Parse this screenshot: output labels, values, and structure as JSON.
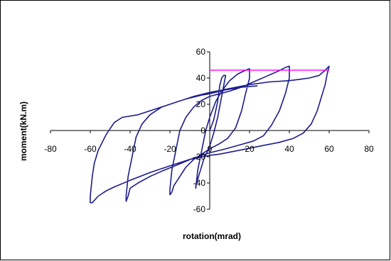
{
  "chart_data": {
    "type": "line",
    "xlabel": "rotation(mrad)",
    "ylabel": "moment(kN.m)",
    "xlim": [
      -80,
      80
    ],
    "ylim": [
      -60,
      60
    ],
    "x_ticks": [
      -80,
      -60,
      -40,
      -20,
      0,
      20,
      40,
      60,
      80
    ],
    "y_ticks": [
      60,
      40,
      20,
      0,
      -20,
      -40,
      -60
    ],
    "x_tick_labels": [
      "-80",
      "-60",
      "-40",
      "-20",
      "0",
      "20",
      "40",
      "60",
      "80"
    ],
    "y_tick_labels": [
      "60",
      "40",
      "20",
      "0",
      "-20",
      "-40",
      "-60"
    ],
    "grid": false,
    "legend": "none",
    "series": [
      {
        "color": "#1c1c8c",
        "points": [
          [
            0,
            0
          ],
          [
            2,
            8
          ],
          [
            4,
            22
          ],
          [
            5,
            34
          ],
          [
            6,
            40
          ],
          [
            7,
            42
          ],
          [
            8,
            42
          ],
          [
            6,
            26
          ],
          [
            4,
            10
          ],
          [
            2,
            -2
          ],
          [
            0,
            -12
          ],
          [
            -3,
            -22
          ],
          [
            -5,
            -32
          ],
          [
            -7,
            -42
          ],
          [
            -7,
            -44
          ],
          [
            -6,
            -30
          ],
          [
            -4,
            -15
          ],
          [
            -2,
            0
          ],
          [
            0,
            10
          ],
          [
            3,
            22
          ],
          [
            6,
            30
          ],
          [
            10,
            38
          ],
          [
            14,
            43
          ],
          [
            18,
            46
          ],
          [
            20,
            47
          ],
          [
            20,
            40
          ],
          [
            18,
            28
          ],
          [
            16,
            15
          ],
          [
            13,
            2
          ],
          [
            9,
            -6
          ],
          [
            5,
            -10
          ],
          [
            0,
            -14
          ],
          [
            -4,
            -18
          ],
          [
            -8,
            -22
          ],
          [
            -12,
            -28
          ],
          [
            -15,
            -35
          ],
          [
            -18,
            -42
          ],
          [
            -19,
            -47
          ],
          [
            -20,
            -49
          ],
          [
            -20,
            -45
          ],
          [
            -19,
            -30
          ],
          [
            -17,
            -15
          ],
          [
            -15,
            0
          ],
          [
            -12,
            10
          ],
          [
            -8,
            18
          ],
          [
            -4,
            23
          ],
          [
            0,
            26
          ],
          [
            5,
            28
          ],
          [
            10,
            30
          ],
          [
            16,
            33
          ],
          [
            22,
            37
          ],
          [
            28,
            41
          ],
          [
            34,
            45
          ],
          [
            38,
            48
          ],
          [
            40,
            49
          ],
          [
            40,
            40
          ],
          [
            38,
            28
          ],
          [
            35,
            15
          ],
          [
            31,
            4
          ],
          [
            27,
            -4
          ],
          [
            22,
            -8
          ],
          [
            15,
            -11
          ],
          [
            8,
            -14
          ],
          [
            0,
            -17
          ],
          [
            -8,
            -21
          ],
          [
            -16,
            -26
          ],
          [
            -24,
            -31
          ],
          [
            -30,
            -35
          ],
          [
            -36,
            -40
          ],
          [
            -40,
            -44
          ],
          [
            -41,
            -50
          ],
          [
            -42,
            -54
          ],
          [
            -42,
            -50
          ],
          [
            -41,
            -35
          ],
          [
            -39,
            -20
          ],
          [
            -37,
            -5
          ],
          [
            -34,
            5
          ],
          [
            -30,
            12
          ],
          [
            -24,
            18
          ],
          [
            -16,
            22
          ],
          [
            -8,
            26
          ],
          [
            0,
            29
          ],
          [
            10,
            32
          ],
          [
            20,
            35
          ],
          [
            30,
            37
          ],
          [
            40,
            38
          ],
          [
            45,
            39
          ],
          [
            50,
            40
          ],
          [
            55,
            42
          ],
          [
            58,
            46
          ],
          [
            60,
            49
          ],
          [
            59,
            43
          ],
          [
            58,
            35
          ],
          [
            56,
            25
          ],
          [
            54,
            15
          ],
          [
            51,
            5
          ],
          [
            47,
            -2
          ],
          [
            42,
            -6
          ],
          [
            35,
            -9
          ],
          [
            25,
            -12
          ],
          [
            15,
            -15
          ],
          [
            5,
            -18
          ],
          [
            0,
            -19
          ],
          [
            -10,
            -22
          ],
          [
            -20,
            -27
          ],
          [
            -30,
            -32
          ],
          [
            -40,
            -38
          ],
          [
            -48,
            -43
          ],
          [
            -52,
            -46
          ],
          [
            -56,
            -50
          ],
          [
            -59,
            -55
          ],
          [
            -60,
            -55
          ],
          [
            -60,
            -50
          ],
          [
            -59,
            -35
          ],
          [
            -58,
            -25
          ],
          [
            -56,
            -15
          ],
          [
            -52,
            -3
          ],
          [
            -48,
            6
          ],
          [
            -44,
            10
          ],
          [
            -36,
            12
          ],
          [
            -28,
            16
          ],
          [
            -20,
            20
          ],
          [
            -12,
            24
          ],
          [
            -4,
            27
          ],
          [
            0,
            28
          ],
          [
            8,
            31
          ],
          [
            16,
            33
          ],
          [
            24,
            34
          ]
        ]
      },
      {
        "color": "#ff00ff",
        "points": [
          [
            0,
            46
          ],
          [
            60,
            46
          ]
        ]
      }
    ]
  }
}
